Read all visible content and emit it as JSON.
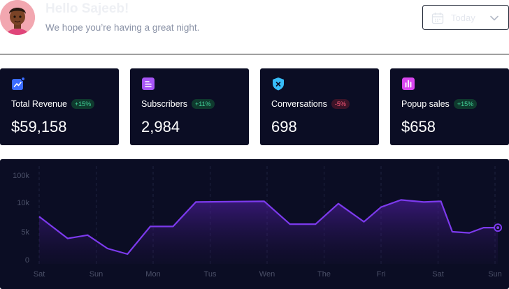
{
  "header": {
    "greeting": "Hello Sajeeb!",
    "subtitle": "We hope you’re having a great night.",
    "avatar_icon": "user-avatar-icon"
  },
  "date_picker": {
    "label": "Today",
    "icon": "calendar-icon",
    "chevron": "chevron-down-icon"
  },
  "stats": [
    {
      "title": "Total Revenue",
      "badge": "+15%",
      "trend": "up",
      "value": "$59,158",
      "icon": "trend-chart-icon",
      "icon_color": "#3b6cff"
    },
    {
      "title": "Subscribers",
      "badge": "+11%",
      "trend": "up",
      "value": "2,984",
      "icon": "document-list-icon",
      "icon_color": "#a855f7"
    },
    {
      "title": "Conversations",
      "badge": "-5%",
      "trend": "down",
      "value": "698",
      "icon": "shield-x-icon",
      "icon_color": "#38bdf8"
    },
    {
      "title": "Popup sales",
      "badge": "+15%",
      "trend": "up",
      "value": "$658",
      "icon": "bar-chart-icon",
      "icon_color": "#d946ef"
    }
  ],
  "chart_data": {
    "type": "area",
    "y_ticks": [
      "100k",
      "10k",
      "5k",
      "0"
    ],
    "x_ticks": [
      "Sat",
      "Sun",
      "Mon",
      "Tus",
      "Wen",
      "The",
      "Fri",
      "Sat",
      "Sun"
    ],
    "y_scale": "categorical-ticks",
    "ylim": [
      0,
      100000
    ],
    "x": [
      0,
      0.5,
      0.85,
      1.2,
      1.55,
      1.95,
      2.35,
      2.75,
      3.2,
      3.95,
      4.4,
      4.85,
      5.25,
      5.7,
      6.0,
      6.35,
      6.75,
      7.05,
      7.25,
      7.55,
      7.8,
      8.05
    ],
    "values": [
      7600,
      3800,
      4400,
      2000,
      1000,
      5900,
      5900,
      10300,
      10500,
      10800,
      6300,
      6300,
      9800,
      6700,
      9200,
      11800,
      10300,
      10800,
      5000,
      4800,
      5700,
      5700
    ],
    "line_color": "#7c3aed",
    "grid": "vertical dashed",
    "legend": "none"
  }
}
